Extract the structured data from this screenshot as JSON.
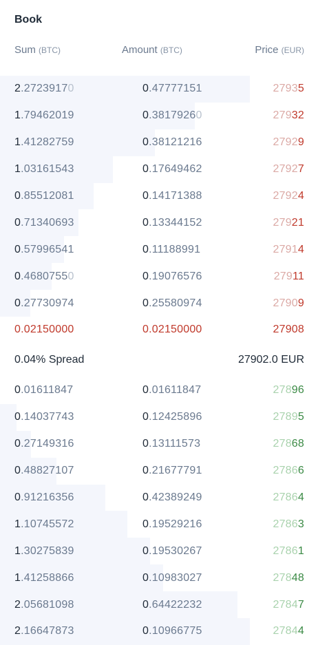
{
  "book": {
    "title": "Book"
  },
  "headers": {
    "sum": "Sum",
    "sum_unit": "(BTC)",
    "amount": "Amount",
    "amount_unit": "(BTC)",
    "price": "Price",
    "price_unit": "(EUR)"
  },
  "asks": [
    {
      "sum": [
        "2",
        ".2723917",
        "0"
      ],
      "amount": [
        "0",
        ".47777151",
        ""
      ],
      "price": [
        "2793",
        "5"
      ],
      "depth": 1.0
    },
    {
      "sum": [
        "1",
        ".79462019",
        ""
      ],
      "amount": [
        "0",
        ".3817926",
        "0"
      ],
      "price": [
        "279",
        "32"
      ],
      "depth": 0.78
    },
    {
      "sum": [
        "1",
        ".41282759",
        ""
      ],
      "amount": [
        "0",
        ".38121216",
        ""
      ],
      "price": [
        "2792",
        "9"
      ],
      "depth": 0.62
    },
    {
      "sum": [
        "1",
        ".03161543",
        ""
      ],
      "amount": [
        "0",
        ".17649462",
        ""
      ],
      "price": [
        "2792",
        "7"
      ],
      "depth": 0.453
    },
    {
      "sum": [
        "0",
        ".85512081",
        ""
      ],
      "amount": [
        "0",
        ".14171388",
        ""
      ],
      "price": [
        "2792",
        "4"
      ],
      "depth": 0.376
    },
    {
      "sum": [
        "0",
        ".71340693",
        ""
      ],
      "amount": [
        "0",
        ".13344152",
        ""
      ],
      "price": [
        "279",
        "21"
      ],
      "depth": 0.313
    },
    {
      "sum": [
        "0",
        ".57996541",
        ""
      ],
      "amount": [
        "0",
        ".11188991",
        ""
      ],
      "price": [
        "2791",
        "4"
      ],
      "depth": 0.255
    },
    {
      "sum": [
        "0",
        ".4680755",
        "0"
      ],
      "amount": [
        "0",
        ".19076576",
        ""
      ],
      "price": [
        "279",
        "11"
      ],
      "depth": 0.206
    },
    {
      "sum": [
        "0",
        ".27730974",
        ""
      ],
      "amount": [
        "0",
        ".25580974",
        ""
      ],
      "price": [
        "2790",
        "9"
      ],
      "depth": 0.122
    },
    {
      "sum": [
        "0.02150000",
        "",
        ""
      ],
      "amount": [
        "0.02150000",
        "",
        ""
      ],
      "price": [
        "27908",
        ""
      ],
      "depth": 0.0,
      "best": true
    }
  ],
  "spread": {
    "label": "0.04% Spread",
    "mid": "27902.0 EUR"
  },
  "bids": [
    {
      "sum": [
        "0",
        ".01611847",
        ""
      ],
      "amount": [
        "0",
        ".01611847",
        ""
      ],
      "price": [
        "278",
        "96"
      ],
      "depth": 0.0
    },
    {
      "sum": [
        "0",
        ".14037743",
        ""
      ],
      "amount": [
        "0",
        ".12425896",
        ""
      ],
      "price": [
        "2789",
        "5"
      ],
      "depth": 0.065
    },
    {
      "sum": [
        "0",
        ".27149316",
        ""
      ],
      "amount": [
        "0",
        ".13111573",
        ""
      ],
      "price": [
        "278",
        "68"
      ],
      "depth": 0.125
    },
    {
      "sum": [
        "0",
        ".48827107",
        ""
      ],
      "amount": [
        "0",
        ".21677791",
        ""
      ],
      "price": [
        "2786",
        "6"
      ],
      "depth": 0.225
    },
    {
      "sum": [
        "0",
        ".91216356",
        ""
      ],
      "amount": [
        "0",
        ".42389249",
        ""
      ],
      "price": [
        "2786",
        "4"
      ],
      "depth": 0.421
    },
    {
      "sum": [
        "1",
        ".10745572",
        ""
      ],
      "amount": [
        "0",
        ".19529216",
        ""
      ],
      "price": [
        "2786",
        "3"
      ],
      "depth": 0.511
    },
    {
      "sum": [
        "1",
        ".30275839",
        ""
      ],
      "amount": [
        "0",
        ".19530267",
        ""
      ],
      "price": [
        "2786",
        "1"
      ],
      "depth": 0.601
    },
    {
      "sum": [
        "1",
        ".41258866",
        ""
      ],
      "amount": [
        "0",
        ".10983027",
        ""
      ],
      "price": [
        "278",
        "48"
      ],
      "depth": 0.652
    },
    {
      "sum": [
        "2",
        ".05681098",
        ""
      ],
      "amount": [
        "0",
        ".64422232",
        ""
      ],
      "price": [
        "2784",
        "7"
      ],
      "depth": 0.95
    },
    {
      "sum": [
        "2",
        ".16647873",
        ""
      ],
      "amount": [
        "0",
        ".10966775",
        ""
      ],
      "price": [
        "2784",
        "4"
      ],
      "depth": 1.0
    }
  ]
}
